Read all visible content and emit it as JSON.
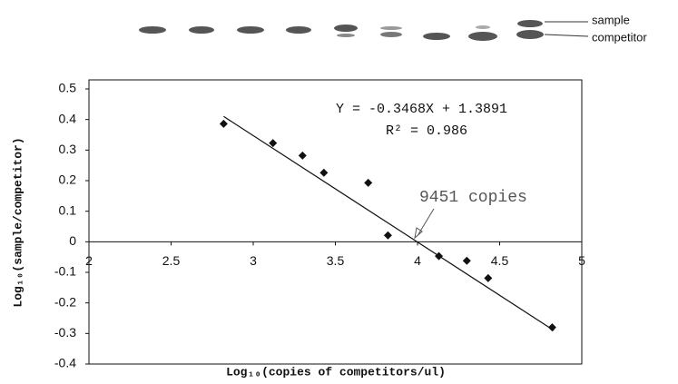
{
  "chart_data": {
    "type": "scatter",
    "gel_labels": [
      "sample",
      "competitor"
    ],
    "x_label": "Log₁₀(copies of competitors/ul)",
    "y_label": "Log₁₀(sample/competitor)",
    "equation": "Y = -0.3468X + 1.3891",
    "r_squared": "R² = 0.986",
    "annotation": "9451 copies",
    "x": [
      2.82,
      3.12,
      3.3,
      3.43,
      3.7,
      3.82,
      4.13,
      4.3,
      4.43,
      4.82
    ],
    "values": [
      0.386,
      0.323,
      0.282,
      0.226,
      0.193,
      0.021,
      -0.047,
      -0.062,
      -0.119,
      -0.28
    ],
    "color": "#111111",
    "trendline": {
      "x": [
        2.82,
        4.83
      ],
      "y": [
        0.41,
        -0.29
      ]
    },
    "xlim": [
      2,
      5
    ],
    "xticks": [
      2,
      2.5,
      3,
      3.5,
      4,
      4.5,
      5
    ],
    "ylim": [
      -0.4,
      0.5
    ],
    "yticks": [
      0.5,
      0.4,
      0.3,
      0.2,
      0.1,
      0,
      -0.1,
      -0.2,
      -0.3,
      -0.4
    ]
  }
}
